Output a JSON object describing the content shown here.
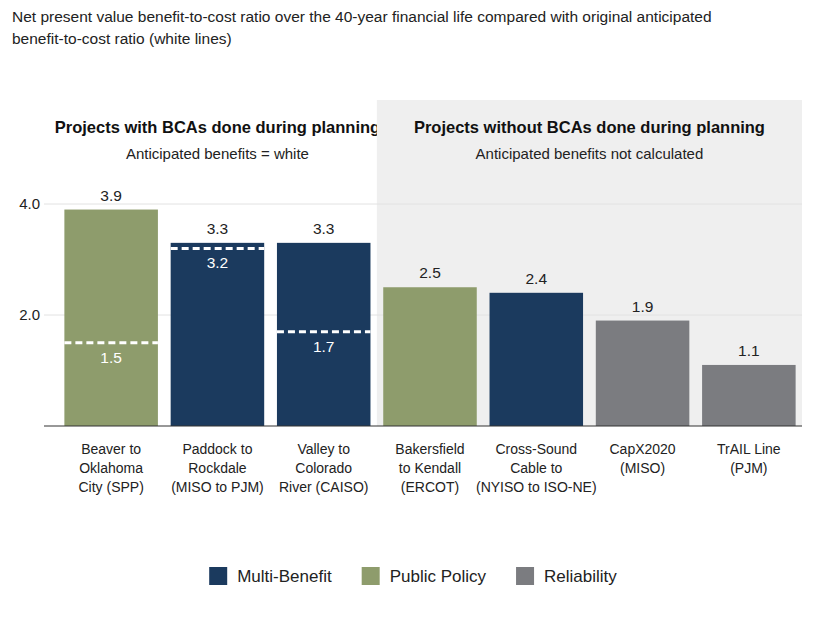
{
  "chart_data": {
    "type": "bar",
    "title": "Net present value benefit-to-cost ratio over the 40-year financial life compared with original anticipated benefit-to-cost ratio (white lines)",
    "panels": [
      {
        "title": "Projects with BCAs done during planning",
        "subtitle": "Anticipated benefits = white",
        "size": 3
      },
      {
        "title": "Projects without BCAs done during planning",
        "subtitle": "Anticipated benefits not calculated",
        "size": 4
      }
    ],
    "categories": [
      "Beaver to\nOklahoma\nCity (SPP)",
      "Paddock to\nRockdale\n(MISO to PJM)",
      "Valley to\nColorado\nRiver (CAISO)",
      "Bakersfield\nto Kendall\n(ERCOT)",
      "Cross-Sound\nCable to\n(NYISO to ISO-NE)",
      "CapX2020\n(MISO)",
      "TrAIL Line\n(PJM)"
    ],
    "values": [
      3.9,
      3.3,
      3.3,
      2.5,
      2.4,
      1.9,
      1.1
    ],
    "colors": [
      "#8e9c6c",
      "#1b3a5e",
      "#1b3a5e",
      "#8e9c6c",
      "#1b3a5e",
      "#7b7c80",
      "#7b7c80"
    ],
    "anticipated_values": [
      1.5,
      3.2,
      1.7,
      null,
      null,
      null,
      null
    ],
    "legend_items": [
      {
        "name": "Multi-Benefit",
        "color": "#1b3a5e"
      },
      {
        "name": "Public Policy",
        "color": "#8e9c6c"
      },
      {
        "name": "Reliability",
        "color": "#7b7c80"
      }
    ],
    "ylim": [
      0,
      4
    ],
    "yticks": [
      {
        "value": 2,
        "label": "2.0"
      },
      {
        "value": 4,
        "label": "4.0"
      }
    ],
    "grid": true,
    "data_labels": true,
    "legend": "bottom"
  }
}
